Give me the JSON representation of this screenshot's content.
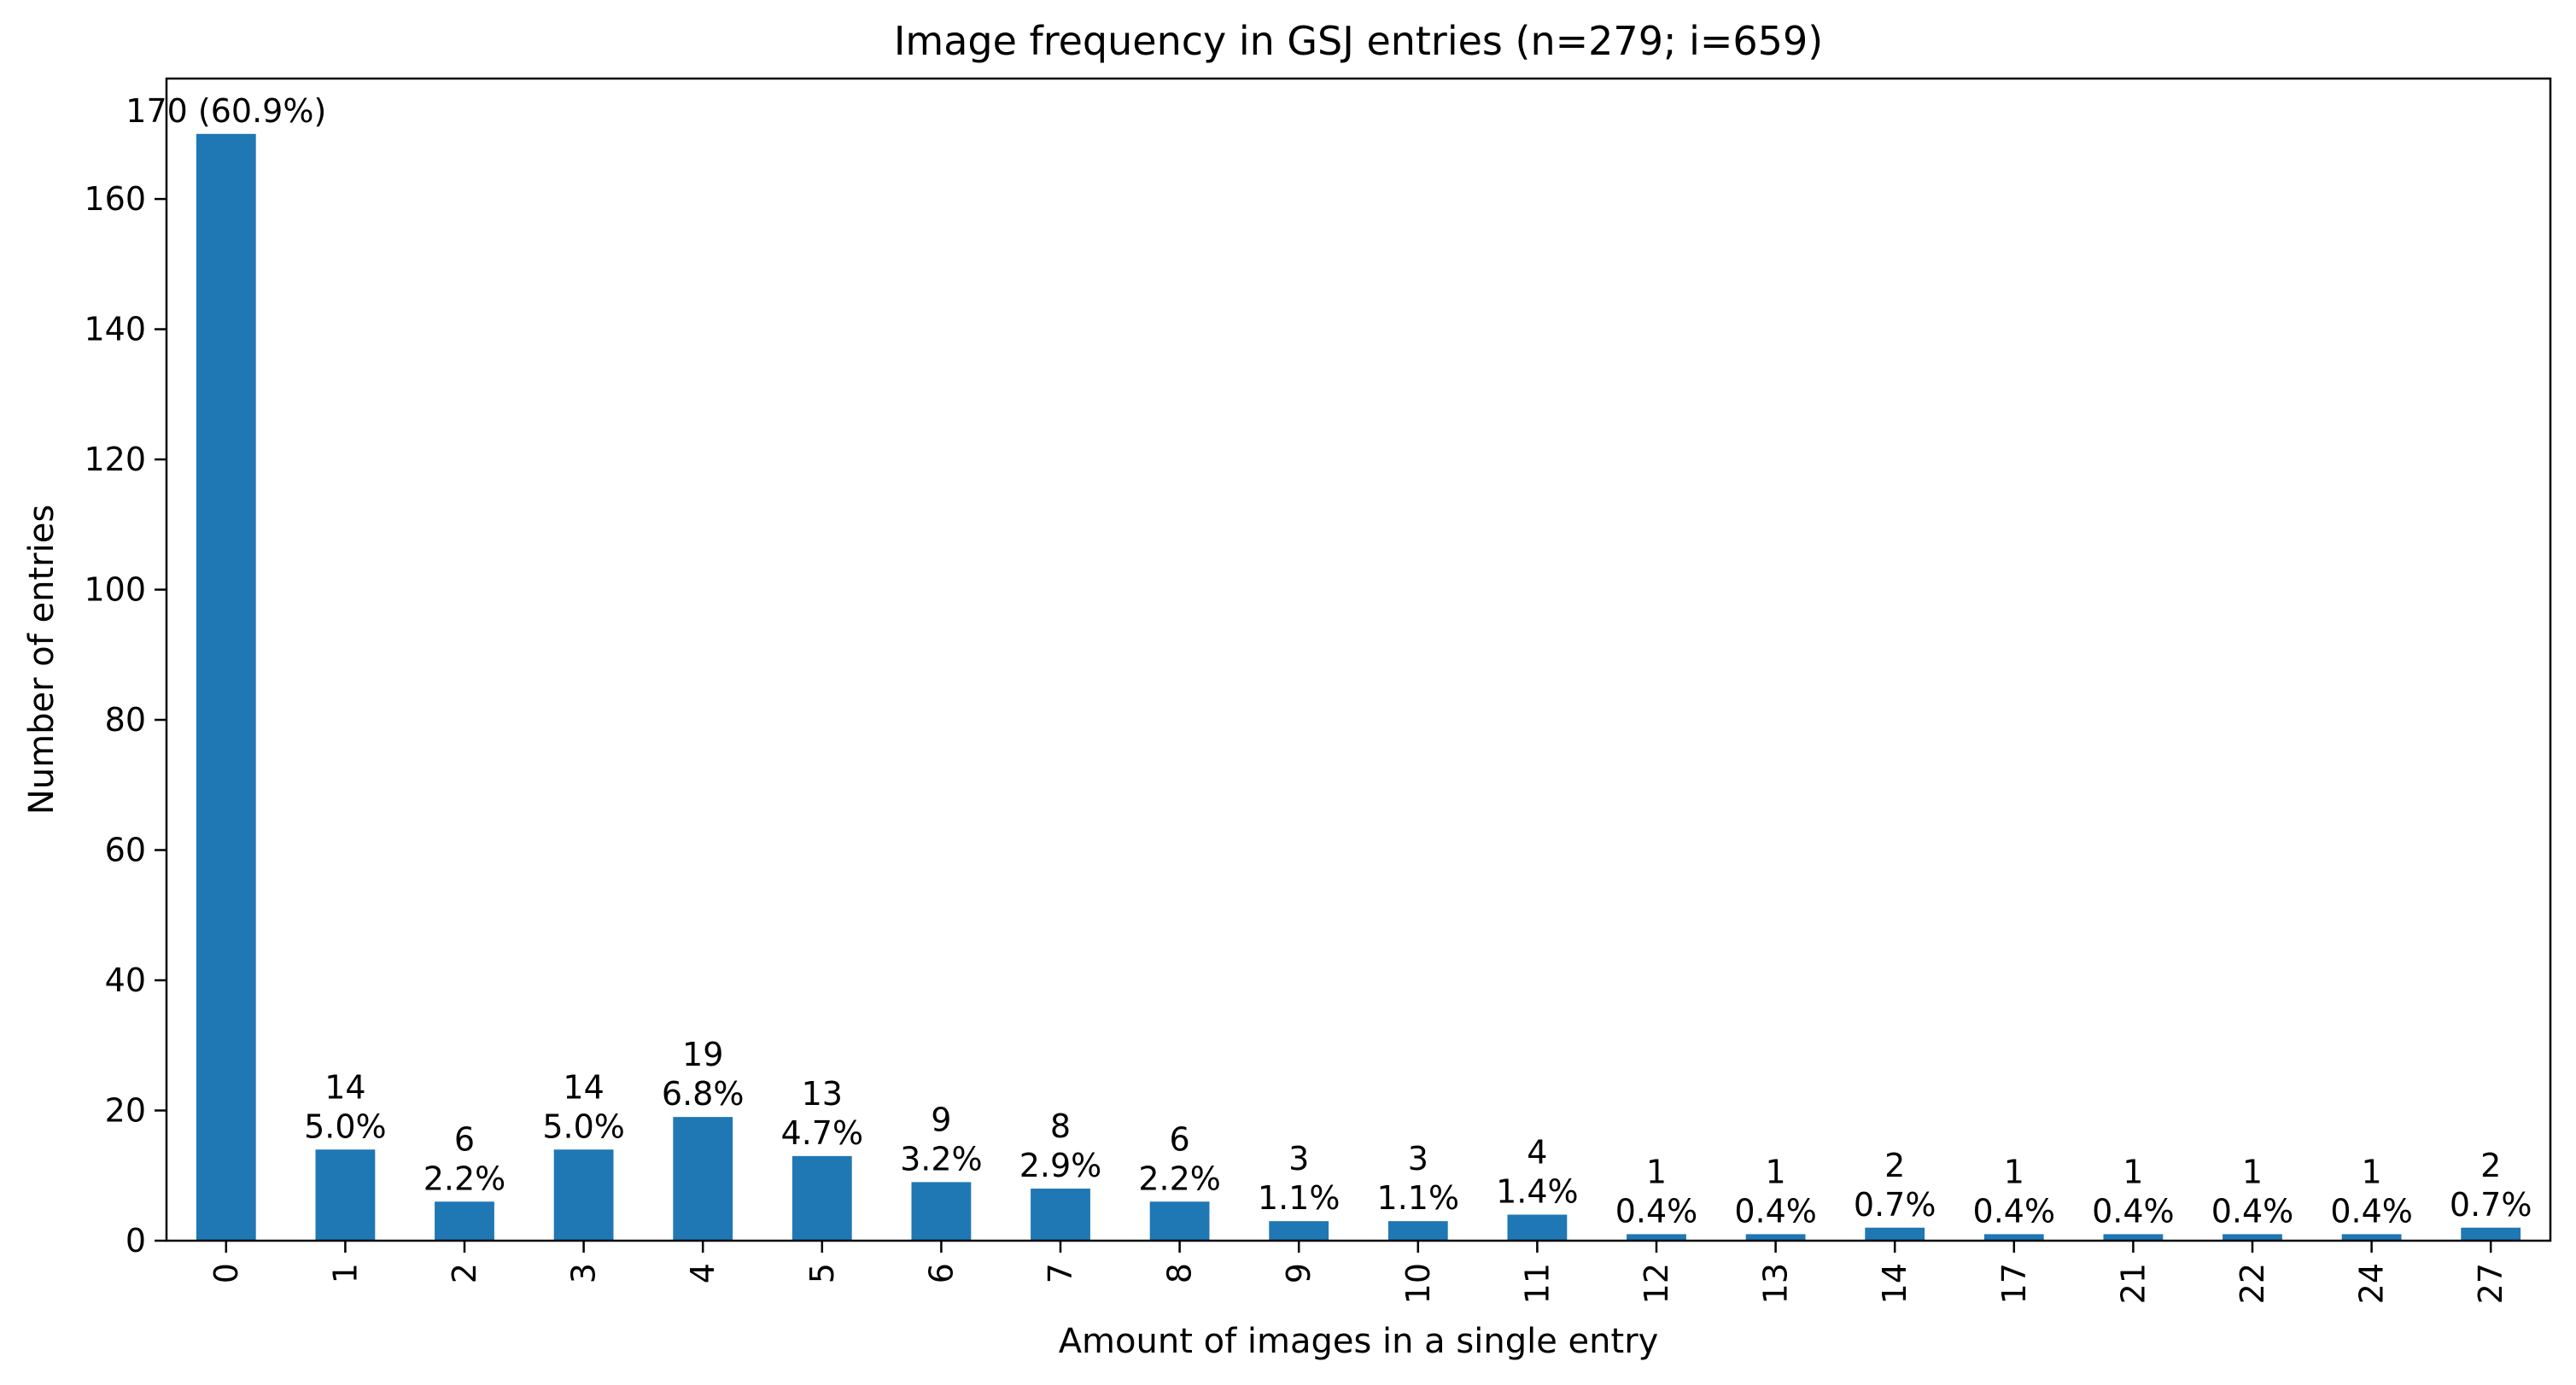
{
  "chart_data": {
    "type": "bar",
    "title": "Image frequency in GSJ entries (n=279; i=659)",
    "xlabel": "Amount of images in a single entry",
    "ylabel": "Number of entries",
    "categories": [
      "0",
      "1",
      "2",
      "3",
      "4",
      "5",
      "6",
      "7",
      "8",
      "9",
      "10",
      "11",
      "12",
      "13",
      "14",
      "17",
      "21",
      "22",
      "24",
      "27"
    ],
    "values": [
      170,
      14,
      6,
      14,
      19,
      13,
      9,
      8,
      6,
      3,
      3,
      4,
      1,
      1,
      2,
      1,
      1,
      1,
      1,
      2
    ],
    "bar_labels": [
      [
        "170 (60.9%)"
      ],
      [
        "14",
        "5.0%"
      ],
      [
        "6",
        "2.2%"
      ],
      [
        "14",
        "5.0%"
      ],
      [
        "19",
        "6.8%"
      ],
      [
        "13",
        "4.7%"
      ],
      [
        "9",
        "3.2%"
      ],
      [
        "8",
        "2.9%"
      ],
      [
        "6",
        "2.2%"
      ],
      [
        "3",
        "1.1%"
      ],
      [
        "3",
        "1.1%"
      ],
      [
        "4",
        "1.4%"
      ],
      [
        "1",
        "0.4%"
      ],
      [
        "1",
        "0.4%"
      ],
      [
        "2",
        "0.7%"
      ],
      [
        "1",
        "0.4%"
      ],
      [
        "1",
        "0.4%"
      ],
      [
        "1",
        "0.4%"
      ],
      [
        "1",
        "0.4%"
      ],
      [
        "2",
        "0.7%"
      ]
    ],
    "y_ticks": [
      0,
      20,
      40,
      60,
      80,
      100,
      120,
      140,
      160
    ],
    "ylim": [
      0,
      178.5
    ],
    "bar_color": "#1f77b4",
    "grid": false,
    "legend": false
  }
}
